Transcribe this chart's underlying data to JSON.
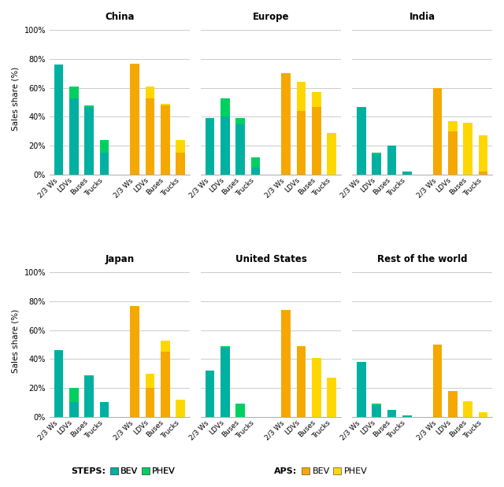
{
  "regions": [
    "China",
    "Europe",
    "India",
    "Japan",
    "United States",
    "Rest of the world"
  ],
  "categories": [
    "2/3 Ws",
    "LDVs",
    "Buses",
    "Trucks"
  ],
  "steps_bev": {
    "China": [
      76,
      53,
      47,
      15
    ],
    "Europe": [
      39,
      40,
      35,
      5
    ],
    "India": [
      47,
      14,
      20,
      2
    ],
    "Japan": [
      46,
      10,
      28,
      10
    ],
    "United States": [
      32,
      48,
      0,
      0
    ],
    "Rest of the world": [
      38,
      8,
      5,
      1
    ]
  },
  "steps_phev": {
    "China": [
      0,
      8,
      1,
      9
    ],
    "Europe": [
      0,
      13,
      4,
      7
    ],
    "India": [
      0,
      1,
      0,
      0
    ],
    "Japan": [
      0,
      10,
      1,
      0
    ],
    "United States": [
      0,
      1,
      9,
      0
    ],
    "Rest of the world": [
      0,
      1,
      0,
      0
    ]
  },
  "aps_bev": {
    "China": [
      77,
      53,
      48,
      15
    ],
    "Europe": [
      70,
      44,
      47,
      0
    ],
    "India": [
      60,
      30,
      0,
      2
    ],
    "Japan": [
      77,
      20,
      45,
      0
    ],
    "United States": [
      74,
      49,
      0,
      0
    ],
    "Rest of the world": [
      50,
      18,
      0,
      0
    ]
  },
  "aps_phev": {
    "China": [
      0,
      8,
      1,
      9
    ],
    "Europe": [
      0,
      20,
      10,
      29
    ],
    "India": [
      0,
      7,
      36,
      25
    ],
    "Japan": [
      0,
      10,
      8,
      12
    ],
    "United States": [
      0,
      0,
      41,
      27
    ],
    "Rest of the world": [
      0,
      0,
      11,
      3
    ]
  },
  "color_steps_bev": "#00b0a0",
  "color_steps_phev": "#00d060",
  "color_aps_bev": "#f5a800",
  "color_aps_phev": "#ffd700",
  "ylabel": "Sales share (%)",
  "yticks": [
    0,
    20,
    40,
    60,
    80,
    100
  ],
  "ytick_labels": [
    "0%",
    "20%",
    "40%",
    "60%",
    "80%",
    "100%"
  ]
}
